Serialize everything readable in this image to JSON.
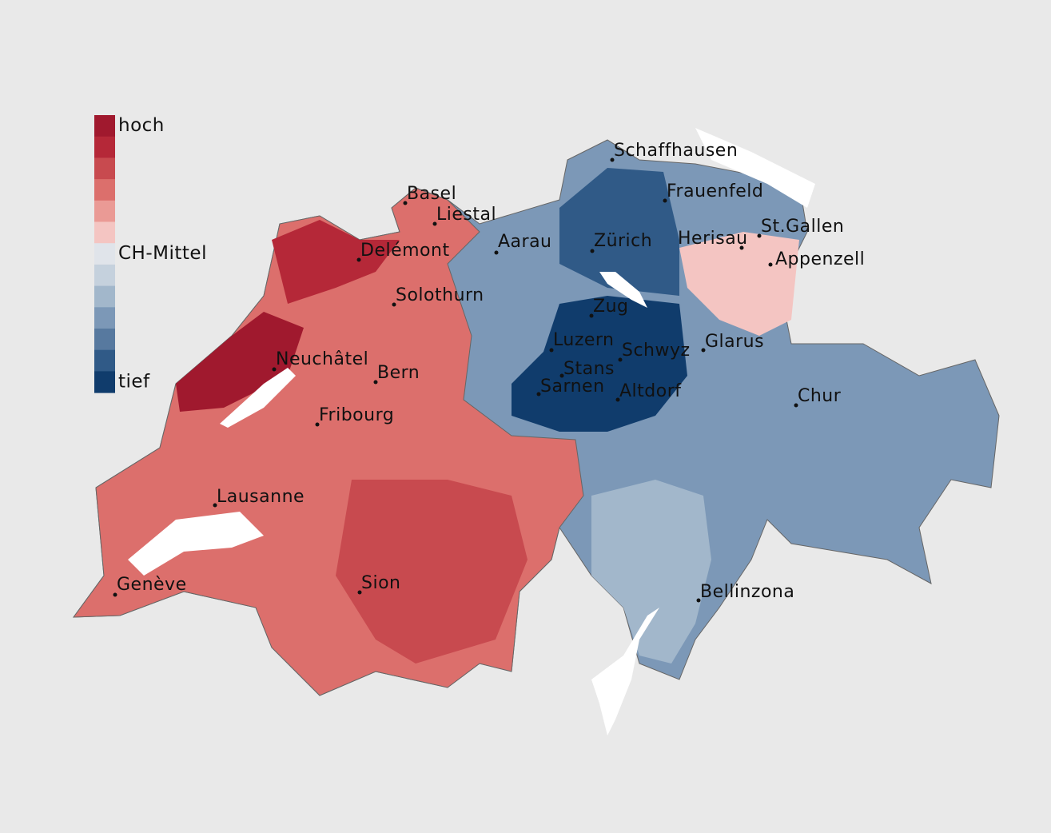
{
  "legend": {
    "colors": [
      "#a0192e",
      "#b52838",
      "#c84a4f",
      "#dc6f6c",
      "#ea9a95",
      "#f4c5c2",
      "#e0e4ea",
      "#c5d1dd",
      "#a2b7cb",
      "#7c98b7",
      "#57799f",
      "#305a87",
      "#103c6c"
    ],
    "labels": [
      "hoch",
      "CH-Mittel",
      "tief"
    ]
  },
  "cities": [
    "Schaffhausen",
    "Frauenfeld",
    "Basel",
    "Liestal",
    "St.Gallen",
    "Herisau",
    "Delémont",
    "Aarau",
    "Zürich",
    "Appenzell",
    "Solothurn",
    "Zug",
    "Neuchâtel",
    "Luzern",
    "Schwyz",
    "Glarus",
    "Bern",
    "Stans",
    "Sarnen",
    "Altdorf",
    "Chur",
    "Fribourg",
    "Lausanne",
    "Genève",
    "Sion",
    "Bellinzona"
  ]
}
